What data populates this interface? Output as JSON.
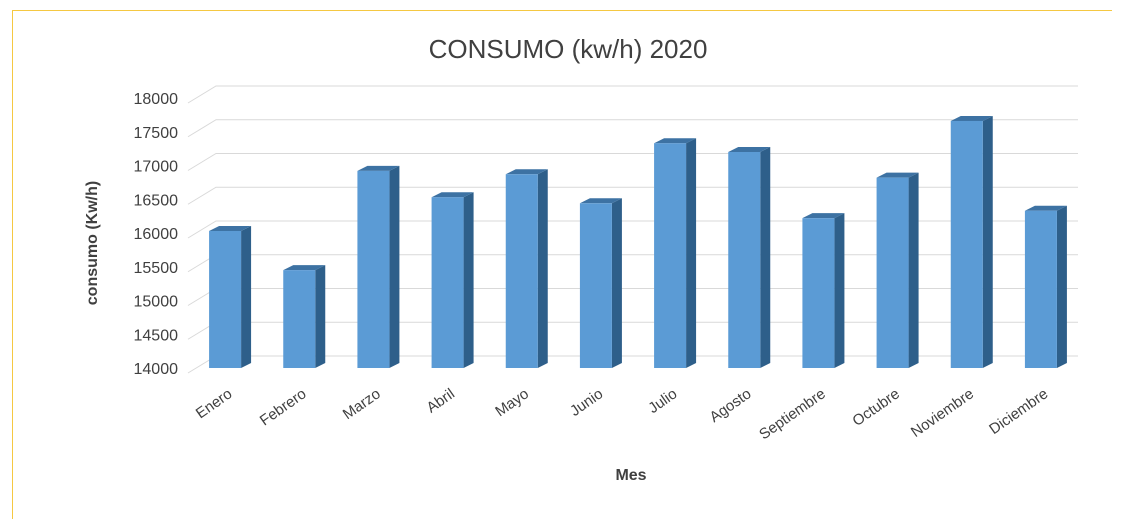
{
  "chart_data": {
    "type": "bar",
    "title": "CONSUMO  (kw/h) 2020",
    "xlabel": "Mes",
    "ylabel": "consumo (Kw/h)",
    "ylim": [
      14000,
      18000
    ],
    "yticks": [
      "18000",
      "17500",
      "17000",
      "16500",
      "16000",
      "15500",
      "15000",
      "14500",
      "14000"
    ],
    "categories": [
      "Enero",
      "Febrero",
      "Marzo",
      "Abril",
      "Mayo",
      "Junio",
      "Julio",
      "Agosto",
      "Septiembre",
      "Octubre",
      "Noviembre",
      "Diciembre"
    ],
    "values": [
      16030,
      15450,
      16920,
      16530,
      16870,
      16440,
      17330,
      17200,
      16220,
      16820,
      17660,
      16330
    ],
    "grid": true,
    "bar_style": "3d",
    "colors": {
      "bar_front": "#5b9bd5",
      "bar_side": "#2e5f8a",
      "bar_top": "#3d72a3",
      "grid": "#d9d9d9",
      "frame_border": "#f5c842"
    }
  }
}
